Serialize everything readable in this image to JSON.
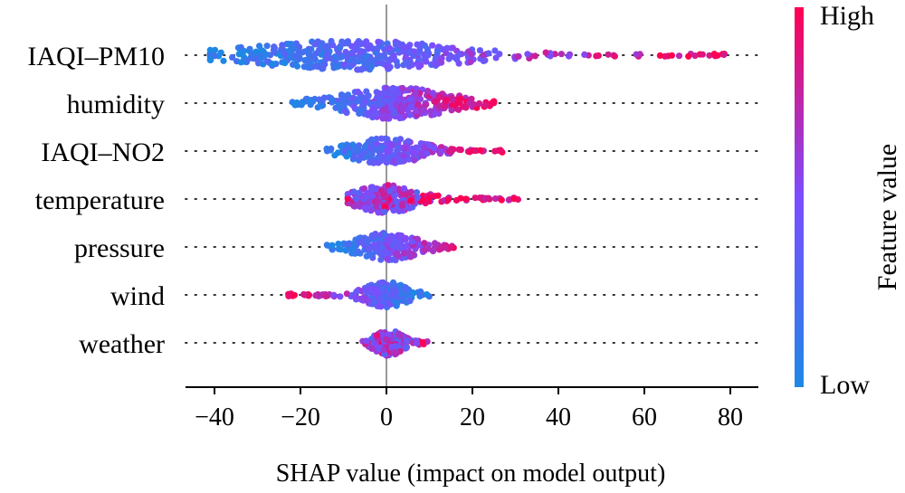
{
  "chart_data": {
    "type": "scatter",
    "subtype": "shap-beeswarm-summary",
    "title": "",
    "xlabel": "SHAP value (impact on model output)",
    "ylabel": "",
    "xlim": [
      -48,
      90
    ],
    "x_ticks": [
      -40,
      -20,
      0,
      20,
      40,
      60,
      80
    ],
    "x_tick_labels": [
      "−40",
      "−20",
      "0",
      "20",
      "40",
      "60",
      "80"
    ],
    "grid": false,
    "zero_line": true,
    "features": [
      {
        "name": "IAQI–PM10",
        "shap_range": [
          -41,
          81
        ],
        "value_trend": "low values negative SHAP, high values strongly positive",
        "density_peak": [
          -30,
          5
        ]
      },
      {
        "name": "humidity",
        "shap_range": [
          -22,
          25
        ],
        "value_trend": "low values negative, high values positive",
        "density_peak": [
          -8,
          12
        ]
      },
      {
        "name": "IAQI–NO2",
        "shap_range": [
          -15,
          27
        ],
        "value_trend": "low values slightly negative, high values positive",
        "density_peak": [
          -6,
          6
        ]
      },
      {
        "name": "temperature",
        "shap_range": [
          -9,
          31
        ],
        "value_trend": "mixed near zero, high values positive tail",
        "density_peak": [
          -5,
          5
        ]
      },
      {
        "name": "pressure",
        "shap_range": [
          -14,
          20
        ],
        "value_trend": "low values negative, high values positive",
        "density_peak": [
          -5,
          6
        ]
      },
      {
        "name": "wind",
        "shap_range": [
          -23,
          10
        ],
        "value_trend": "high values negative tail, low values near zero",
        "density_peak": [
          -4,
          4
        ]
      },
      {
        "name": "weather",
        "shap_range": [
          -6,
          10
        ],
        "value_trend": "mixed near zero",
        "density_peak": [
          -2,
          3
        ]
      }
    ],
    "colorbar": {
      "title": "Feature value",
      "high_label": "High",
      "low_label": "Low",
      "low_color": "#1e88e5",
      "mid_color": "#7c4dff",
      "high_color": "#ff0052"
    }
  }
}
